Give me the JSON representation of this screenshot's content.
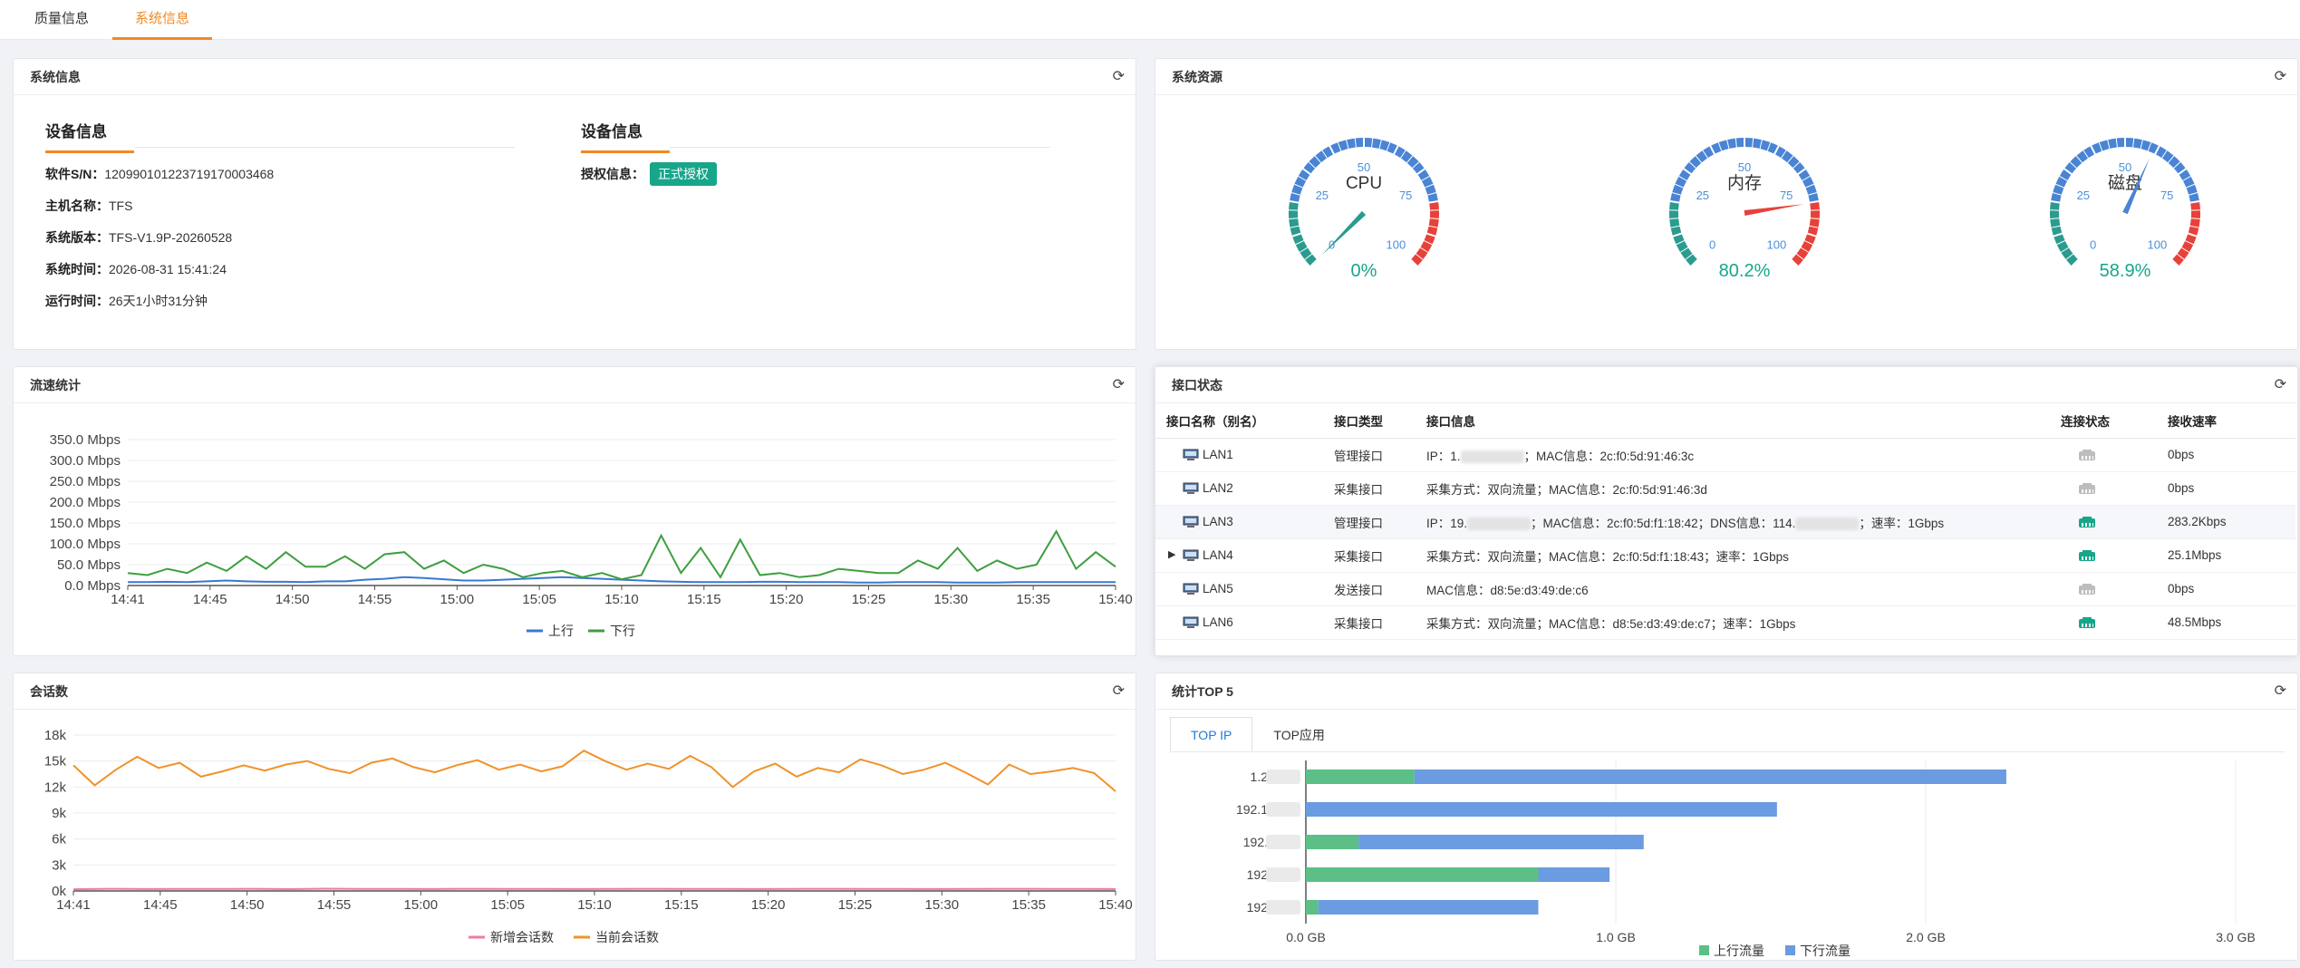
{
  "tabs": [
    "质量信息",
    "系统信息"
  ],
  "sysinfo": {
    "title": "系统信息",
    "left_section": "设备信息",
    "right_section": "设备信息",
    "rows": [
      {
        "label": "软件S/N：",
        "value": "120990101223719170003468"
      },
      {
        "label": "主机名称：",
        "value": "TFS"
      },
      {
        "label": "系统版本：",
        "value": "TFS-V1.9P-20260528"
      },
      {
        "label": "系统时间：",
        "value": "2026-08-31 15:41:24"
      },
      {
        "label": "运行时间：",
        "value": "26天1小时31分钟"
      }
    ],
    "auth_label": "授权信息：",
    "auth_value": "正式授权"
  },
  "resources": {
    "title": "系统资源",
    "gauges": [
      {
        "name": "CPU",
        "value": 0,
        "text": "0%"
      },
      {
        "name": "内存",
        "value": 80.2,
        "text": "80.2%"
      },
      {
        "name": "磁盘",
        "value": 58.9,
        "text": "58.9%"
      }
    ],
    "ticks": [
      "0",
      "25",
      "50",
      "75",
      "100"
    ]
  },
  "traffic": {
    "title": "流速统计",
    "legend_up": "上行",
    "legend_down": "下行"
  },
  "iface": {
    "title": "接口状态",
    "headers": [
      "接口名称（别名）",
      "接口类型",
      "接口信息",
      "连接状态",
      "接收速率"
    ],
    "rows": [
      {
        "name": "LAN1",
        "type": "管理接口",
        "info_a": "IP：1.",
        "info_b": "；MAC信息：2c:f0:5d:91:46:3c",
        "status": "down",
        "rate": "0bps"
      },
      {
        "name": "LAN2",
        "type": "采集接口",
        "info_a": "采集方式：双向流量；MAC信息：2c:f0:5d:91:46:3d",
        "info_b": "",
        "status": "down",
        "rate": "0bps"
      },
      {
        "name": "LAN3",
        "type": "管理接口",
        "info_a": "IP：19.",
        "info_b": "；MAC信息：2c:f0:5d:f1:18:42；DNS信息：114.",
        "info_c": "；速率：1Gbps",
        "status": "up",
        "rate": "283.2Kbps"
      },
      {
        "name": "LAN4",
        "type": "采集接口",
        "info_a": "采集方式：双向流量；MAC信息：2c:f0:5d:f1:18:43；速率：1Gbps",
        "info_b": "",
        "status": "up",
        "rate": "25.1Mbps"
      },
      {
        "name": "LAN5",
        "type": "发送接口",
        "info_a": "MAC信息：d8:5e:d3:49:de:c6",
        "info_b": "",
        "status": "down",
        "rate": "0bps"
      },
      {
        "name": "LAN6",
        "type": "采集接口",
        "info_a": "采集方式：双向流量；MAC信息：d8:5e:d3:49:de:c7；速率：1Gbps",
        "info_b": "",
        "status": "up",
        "rate": "48.5Mbps"
      }
    ]
  },
  "sessions": {
    "title": "会话数",
    "legend_new": "新增会话数",
    "legend_cur": "当前会话数"
  },
  "top5": {
    "title": "统计TOP 5",
    "tabs": [
      "TOP IP",
      "TOP应用"
    ],
    "legend_up": "上行流量",
    "legend_down": "下行流量"
  },
  "colors": {
    "accent": "#f08a24",
    "up": "#3a78d4",
    "down": "#3e9e3e",
    "green": "#5bbf87",
    "blue": "#6b9be0",
    "orange": "#f0922a",
    "pink": "#f07b9b"
  },
  "chart_data": [
    {
      "type": "line",
      "title": "流速统计",
      "x_ticks": [
        "14:41",
        "14:45",
        "14:50",
        "14:55",
        "15:00",
        "15:05",
        "15:10",
        "15:15",
        "15:20",
        "15:25",
        "15:30",
        "15:35",
        "15:40"
      ],
      "y_ticks": [
        "0.0 Mbps",
        "50.0 Mbps",
        "100.0 Mbps",
        "150.0 Mbps",
        "200.0 Mbps",
        "250.0 Mbps",
        "300.0 Mbps",
        "350.0 Mbps"
      ],
      "ylim": [
        0,
        350
      ],
      "series": [
        {
          "name": "上行",
          "values": [
            8,
            8,
            9,
            8,
            10,
            12,
            10,
            9,
            9,
            8,
            10,
            10,
            14,
            16,
            20,
            18,
            15,
            12,
            12,
            14,
            16,
            18,
            20,
            18,
            16,
            14,
            12,
            10,
            9,
            8,
            8,
            8,
            9,
            9,
            8,
            8,
            8,
            7,
            7,
            8,
            8,
            8,
            7,
            7,
            7,
            8,
            8,
            8,
            8,
            8,
            8
          ]
        },
        {
          "name": "下行",
          "values": [
            30,
            25,
            40,
            30,
            55,
            35,
            70,
            40,
            80,
            45,
            45,
            70,
            40,
            75,
            80,
            40,
            60,
            30,
            50,
            40,
            20,
            30,
            35,
            20,
            30,
            15,
            25,
            120,
            30,
            90,
            20,
            110,
            25,
            30,
            20,
            25,
            40,
            35,
            30,
            30,
            60,
            40,
            90,
            35,
            60,
            40,
            50,
            130,
            40,
            80,
            45
          ]
        }
      ],
      "legend": "bottom"
    },
    {
      "type": "line",
      "title": "会话数",
      "x_ticks": [
        "14:41",
        "14:45",
        "14:50",
        "14:55",
        "15:00",
        "15:05",
        "15:10",
        "15:15",
        "15:20",
        "15:25",
        "15:30",
        "15:35",
        "15:40"
      ],
      "y_ticks": [
        "0k",
        "3k",
        "6k",
        "9k",
        "12k",
        "15k",
        "18k"
      ],
      "ylim": [
        0,
        18000
      ],
      "series": [
        {
          "name": "新增会话数",
          "values": [
            200,
            250,
            220,
            240,
            230,
            250,
            210,
            260,
            230,
            240,
            220,
            250,
            230,
            240,
            220,
            230,
            250,
            240,
            230,
            220,
            240,
            250,
            230,
            240,
            220,
            230,
            250,
            240,
            230,
            220
          ]
        },
        {
          "name": "当前会话数",
          "values": [
            14500,
            12200,
            14000,
            15500,
            14200,
            14800,
            13200,
            13800,
            14500,
            13900,
            14600,
            15000,
            14100,
            13600,
            14800,
            15300,
            14300,
            13700,
            14500,
            15100,
            14000,
            14600,
            13800,
            14400,
            16200,
            15000,
            14000,
            14700,
            14100,
            15600,
            14300,
            12000,
            13800,
            14700,
            13200,
            14200,
            13700,
            15200,
            14500,
            13500,
            14000,
            14800,
            13600,
            12300,
            14600,
            13500,
            13800,
            14200,
            13600,
            11500
          ]
        }
      ],
      "legend": "bottom"
    },
    {
      "type": "bar",
      "title": "统计TOP 5",
      "orientation": "horizontal",
      "stacked": true,
      "x_ticks": [
        "0.0 GB",
        "1.0 GB",
        "2.0 GB",
        "3.0 GB"
      ],
      "xlim": [
        0,
        3.0
      ],
      "categories": [
        "1.2",
        "192.1",
        "192.",
        "192",
        "192"
      ],
      "series": [
        {
          "name": "上行流量",
          "values": [
            0.35,
            0.0,
            0.17,
            0.75,
            0.04
          ]
        },
        {
          "name": "下行流量",
          "values": [
            1.91,
            1.52,
            0.92,
            0.23,
            0.71
          ]
        }
      ],
      "legend": "bottom"
    }
  ]
}
